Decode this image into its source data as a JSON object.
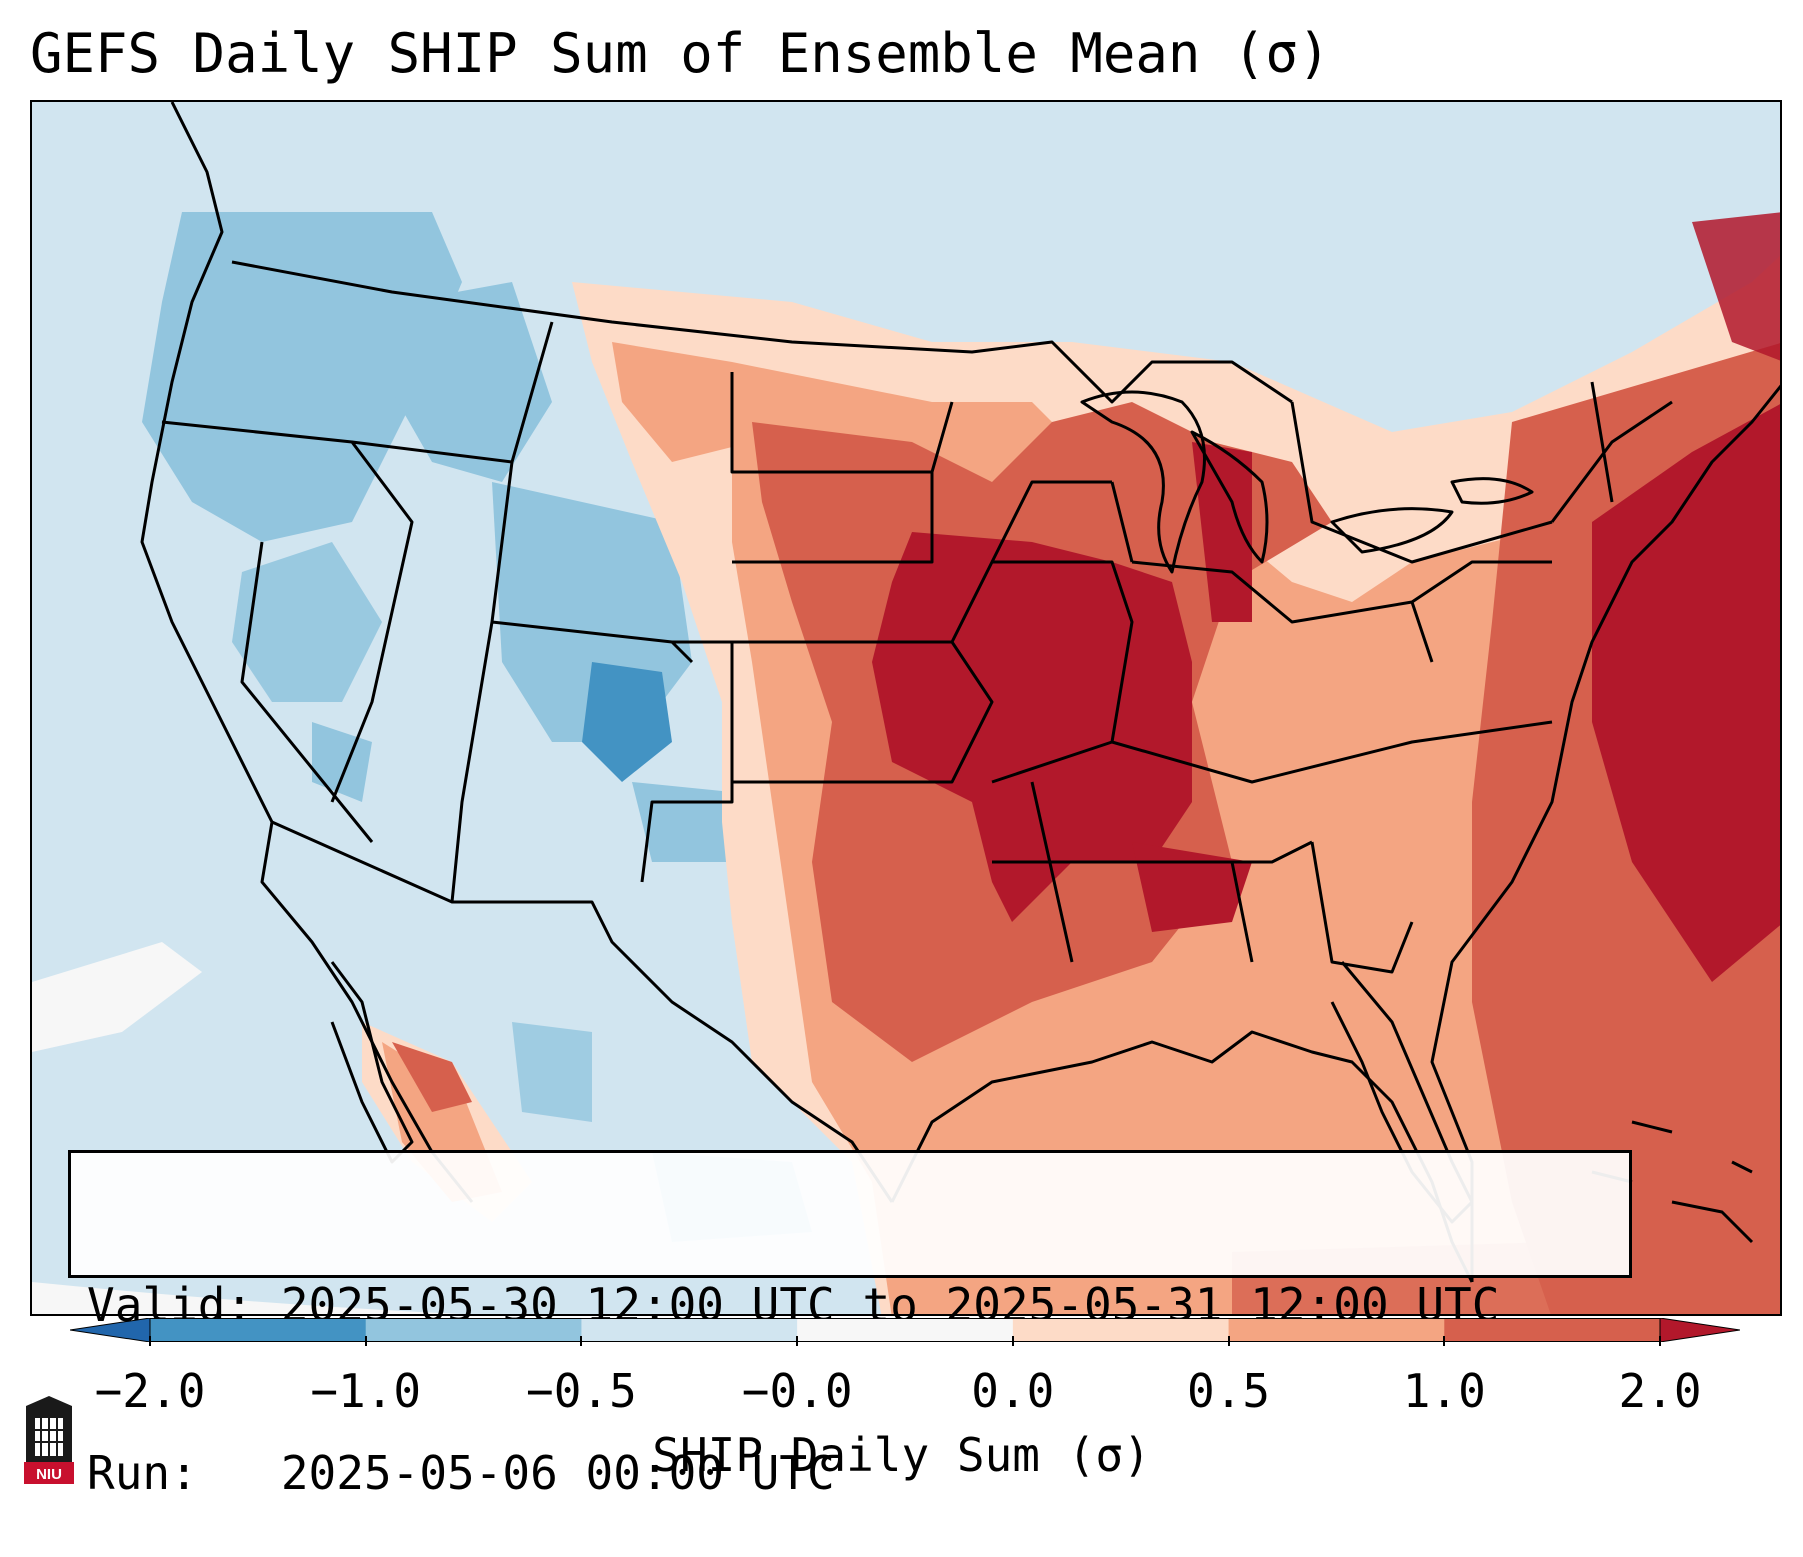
{
  "title": "GEFS Daily SHIP Sum of Ensemble Mean (σ)",
  "info": {
    "valid_line": "Valid: 2025-05-30 12:00 UTC to 2025-05-31 12:00 UTC",
    "run_line": "Run:   2025-05-06 00:00 UTC"
  },
  "colorbar": {
    "label": "SHIP Daily Sum (σ)",
    "ticks": [
      "−2.0",
      "−1.0",
      "−0.5",
      "−0.0",
      "0.0",
      "0.5",
      "1.0",
      "2.0"
    ],
    "bins": [
      {
        "range": "< -2.0",
        "color": "#2166ac"
      },
      {
        "range": "-2.0 to -1.0",
        "color": "#4393c3"
      },
      {
        "range": "-1.0 to -0.5",
        "color": "#92c5de"
      },
      {
        "range": "-0.5 to -0.0",
        "color": "#d1e5f0"
      },
      {
        "range": "-0.0 to 0.0",
        "color": "#f7f7f7"
      },
      {
        "range": "0.0 to 0.5",
        "color": "#fddbc7"
      },
      {
        "range": "0.5 to 1.0",
        "color": "#f4a582"
      },
      {
        "range": "1.0 to 2.0",
        "color": "#d6604d"
      },
      {
        "range": "> 2.0",
        "color": "#b2182b"
      }
    ]
  },
  "map": {
    "region": "Contiguous United States",
    "projection": "conic",
    "highest_values_region": "Mississippi Valley, Midwest and western Atlantic (1.0 to 2.0+)",
    "lowest_values_region": "Northwest and central Rockies (-0.5 to -2.0)"
  },
  "logo": {
    "text": "NIU"
  }
}
